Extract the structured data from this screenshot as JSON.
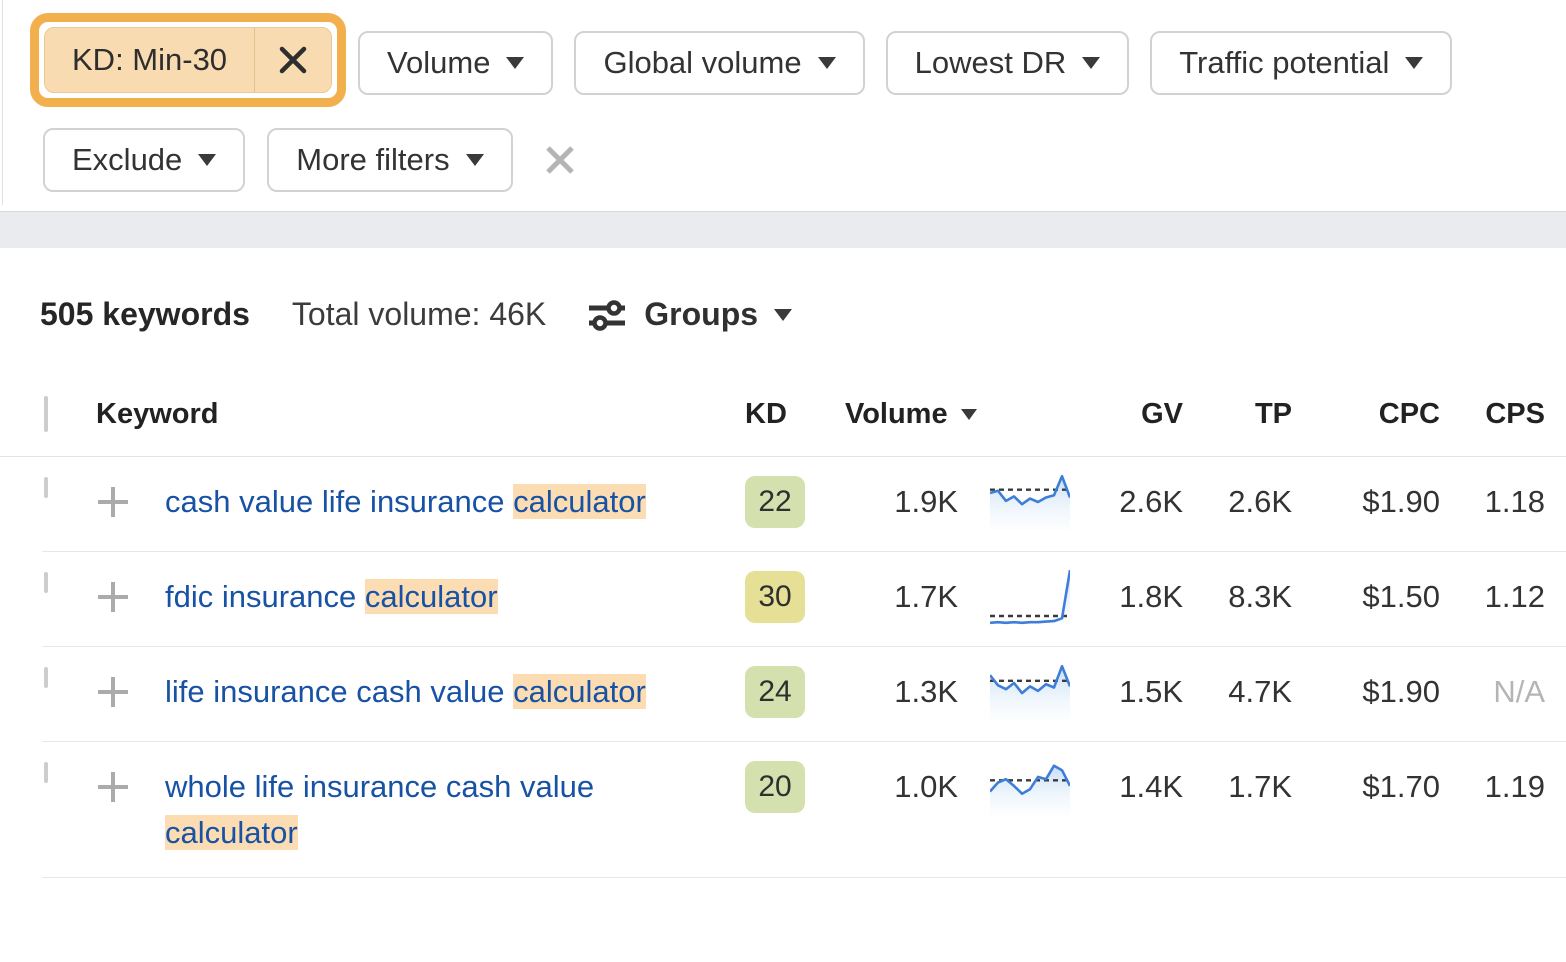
{
  "colors": {
    "annotation_orange": "#F1B04D",
    "chip_bg": "#F8DBB0",
    "keyword_highlight_bg": "#FBDCB3",
    "kd_green": "#D4E0AE",
    "kd_yellow": "#E5E095",
    "link_blue": "#1752A4",
    "sparkline_blue": "#3F7ED8",
    "band_gray": "#E9EBEE"
  },
  "icons": {
    "chip_remove": "x-icon",
    "clear_filters": "x-icon",
    "groups": "sliders-icon",
    "add_keyword": "plus-icon",
    "dropdown": "caret-down-icon",
    "sort": "caret-down-icon"
  },
  "filters": {
    "active_chip": {
      "label": "KD: Min-30"
    },
    "row1_buttons": [
      {
        "label": "Volume"
      },
      {
        "label": "Global volume"
      },
      {
        "label": "Lowest DR"
      },
      {
        "label": "Traffic potential"
      }
    ],
    "row2_buttons": [
      {
        "label": "Exclude"
      },
      {
        "label": "More filters"
      }
    ]
  },
  "summary": {
    "keywords_count": "505 keywords",
    "total_volume": "Total volume: 46K",
    "groups_label": "Groups"
  },
  "table": {
    "headers": {
      "keyword": "Keyword",
      "kd": "KD",
      "volume": "Volume",
      "gv": "GV",
      "tp": "TP",
      "cpc": "CPC",
      "cps": "CPS"
    },
    "rows": [
      {
        "keyword_pre": "cash value life insurance ",
        "keyword_highlight": "calculator",
        "kd": "22",
        "kd_level": "green",
        "volume": "1.9K",
        "gv": "2.6K",
        "tp": "2.6K",
        "cpc": "$1.90",
        "cps": "1.18",
        "cps_muted": false,
        "trend": {
          "ref_line": 0.72,
          "points": [
            0.66,
            0.7,
            0.52,
            0.6,
            0.46,
            0.56,
            0.5,
            0.58,
            0.62,
            0.96,
            0.58
          ]
        }
      },
      {
        "keyword_pre": "fdic insurance ",
        "keyword_highlight": "calculator",
        "kd": "30",
        "kd_level": "yellow",
        "volume": "1.7K",
        "gv": "1.8K",
        "tp": "8.3K",
        "cpc": "$1.50",
        "cps": "1.12",
        "cps_muted": false,
        "trend": {
          "ref_line": 0.16,
          "points": [
            0.04,
            0.05,
            0.04,
            0.05,
            0.04,
            0.05,
            0.05,
            0.06,
            0.07,
            0.12,
            0.98
          ]
        }
      },
      {
        "keyword_pre": "life insurance cash value ",
        "keyword_highlight": "calculator",
        "kd": "24",
        "kd_level": "green",
        "volume": "1.3K",
        "gv": "1.5K",
        "tp": "4.7K",
        "cpc": "$1.90",
        "cps": "N/A",
        "cps_muted": true,
        "trend": {
          "ref_line": 0.7,
          "points": [
            0.8,
            0.62,
            0.55,
            0.66,
            0.48,
            0.6,
            0.52,
            0.64,
            0.58,
            0.96,
            0.6
          ]
        }
      },
      {
        "keyword_pre": "whole life insurance cash value ",
        "keyword_highlight": "calculator",
        "kd": "20",
        "kd_level": "green",
        "volume": "1.0K",
        "gv": "1.4K",
        "tp": "1.7K",
        "cpc": "$1.70",
        "cps": "1.19",
        "cps_muted": false,
        "trend": {
          "ref_line": 0.62,
          "points": [
            0.42,
            0.58,
            0.64,
            0.52,
            0.38,
            0.46,
            0.68,
            0.64,
            0.88,
            0.8,
            0.52
          ]
        }
      }
    ]
  },
  "chart_data": {
    "type": "line",
    "note": "row volume-trend sparklines, values normalized 0-1 (1 = top of sparkline box), dashed reference line per row",
    "series": [
      {
        "name": "cash value life insurance calculator",
        "values": [
          0.66,
          0.7,
          0.52,
          0.6,
          0.46,
          0.56,
          0.5,
          0.58,
          0.62,
          0.96,
          0.58
        ],
        "ref_line": 0.72
      },
      {
        "name": "fdic insurance calculator",
        "values": [
          0.04,
          0.05,
          0.04,
          0.05,
          0.04,
          0.05,
          0.05,
          0.06,
          0.07,
          0.12,
          0.98
        ],
        "ref_line": 0.16
      },
      {
        "name": "life insurance cash value calculator",
        "values": [
          0.8,
          0.62,
          0.55,
          0.66,
          0.48,
          0.6,
          0.52,
          0.64,
          0.58,
          0.96,
          0.6
        ],
        "ref_line": 0.7
      },
      {
        "name": "whole life insurance cash value calculator",
        "values": [
          0.42,
          0.58,
          0.64,
          0.52,
          0.38,
          0.46,
          0.68,
          0.64,
          0.88,
          0.8,
          0.52
        ],
        "ref_line": 0.62
      }
    ]
  }
}
